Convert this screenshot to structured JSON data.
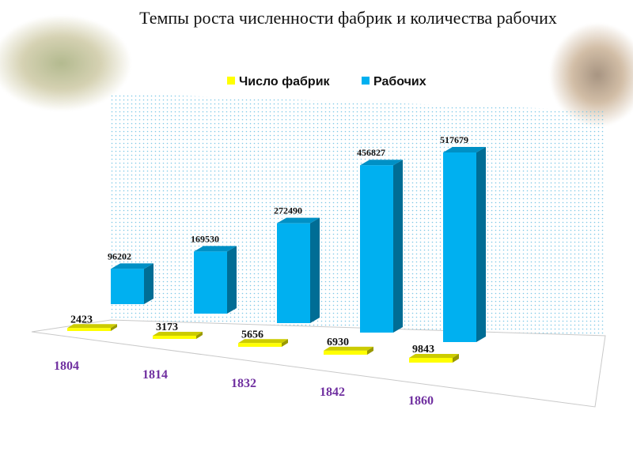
{
  "title": "Темпы роста численности фабрик и количества рабочих",
  "chart_data": {
    "type": "bar",
    "categories": [
      "1804",
      "1814",
      "1832",
      "1842",
      "1860"
    ],
    "series": [
      {
        "name": "Число фабрик",
        "color": "#FFFF00",
        "values": [
          2423,
          3173,
          5656,
          6930,
          9843
        ]
      },
      {
        "name": "Рабочих",
        "color": "#00B0F0",
        "values": [
          96202,
          169530,
          272490,
          456827,
          517679
        ]
      }
    ],
    "category_label_color": "#7030A0",
    "legend_position": "top",
    "grid": false
  },
  "decorations": [
    "factory-painting-image",
    "portrait-image"
  ]
}
